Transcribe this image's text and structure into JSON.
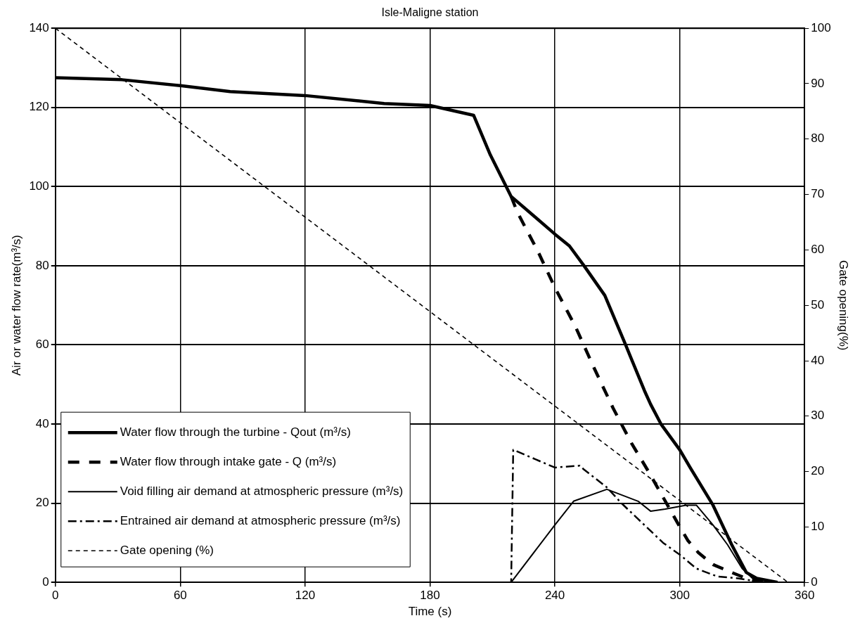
{
  "chart_data": {
    "type": "line",
    "title": "Isle-Maligne station",
    "xlabel": "Time (s)",
    "ylabel": "Air or water flow rate(m³/s)",
    "y2label": "Gate opening(%)",
    "xlim": [
      0,
      360
    ],
    "xticks": [
      0,
      60,
      120,
      180,
      240,
      300,
      360
    ],
    "ylim": [
      0,
      140
    ],
    "yticks": [
      0,
      20,
      40,
      60,
      80,
      100,
      120,
      140
    ],
    "y2lim": [
      0,
      100
    ],
    "y2ticks": [
      0,
      10,
      20,
      30,
      40,
      50,
      60,
      70,
      80,
      90,
      100
    ],
    "grid": true,
    "legend": "bottom left",
    "marker": "none",
    "series": [
      {
        "name": "Water flow through the turbine - Qout (m³/s)",
        "color": "#000000",
        "line_style": "solid",
        "x": [
          0,
          32,
          60,
          84,
          120,
          158,
          180,
          201,
          209,
          219,
          240,
          247,
          254,
          264,
          274,
          283,
          286,
          291,
          300,
          305,
          316,
          325,
          332,
          337,
          347
        ],
        "values": [
          127.5,
          127,
          125.5,
          124,
          123,
          121,
          120.5,
          118,
          108,
          97.5,
          88,
          85,
          80,
          72.5,
          60,
          48.5,
          45,
          40,
          33.5,
          29,
          19.5,
          9.5,
          2.5,
          1,
          0
        ]
      },
      {
        "name": "Water flow through intake gate - Q (m³/s)",
        "color": "#000000",
        "line_style": "dashed",
        "x": [
          219,
          222,
          232,
          240,
          250,
          259,
          268,
          277,
          285,
          292,
          299,
          304,
          309,
          316,
          325,
          332,
          340
        ],
        "values": [
          97.5,
          93.5,
          83.5,
          74.5,
          64.5,
          54,
          44,
          35,
          28,
          21.5,
          15,
          10.5,
          7.5,
          4.5,
          2.5,
          1,
          0
        ]
      },
      {
        "name": "Void filling air demand at atmospheric pressure (m³/s)",
        "color": "#000000",
        "line_style": "solid",
        "x": [
          200,
          219,
          240,
          249,
          265,
          280,
          286,
          293,
          303,
          308,
          316,
          323,
          330,
          335,
          347
        ],
        "values": [
          0,
          0,
          14.5,
          20.5,
          23.5,
          20.5,
          18,
          18.5,
          19.5,
          19.5,
          14.5,
          9.5,
          3.5,
          1,
          0
        ]
      },
      {
        "name": "Entrained air demand at atmospheric pressure (m³/s)",
        "color": "#000000",
        "line_style": "dashdot",
        "x": [
          200,
          219,
          220,
          240,
          252,
          254,
          265,
          272,
          280,
          292,
          300,
          308,
          318,
          328,
          340
        ],
        "values": [
          0,
          0,
          33.5,
          29,
          29.5,
          28.5,
          24,
          20,
          16,
          10,
          7,
          3.5,
          1.5,
          1,
          0
        ]
      },
      {
        "name": "Gate opening (%)",
        "color": "#000000",
        "line_style": "dashed",
        "axis": "y2",
        "x": [
          0,
          352
        ],
        "values": [
          100,
          0
        ]
      }
    ]
  }
}
